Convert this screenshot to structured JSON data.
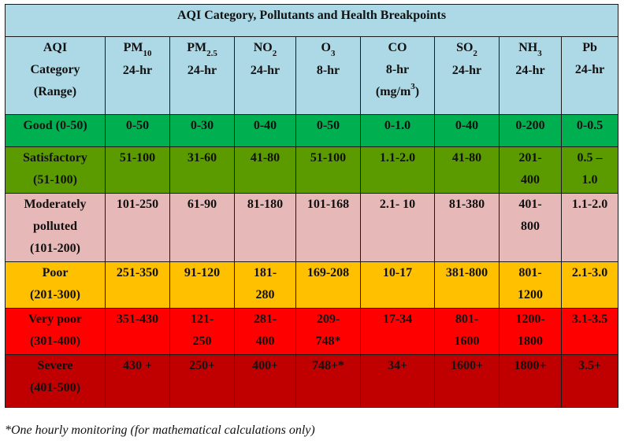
{
  "title": "AQI Category, Pollutants and Health Breakpoints",
  "headers": [
    {
      "lines": [
        "AQI",
        "Category",
        "(Range)"
      ]
    },
    {
      "name": "PM",
      "sub": "10",
      "period": "24-hr"
    },
    {
      "name": "PM",
      "sub": "2.5",
      "period": "24-hr"
    },
    {
      "name": "NO",
      "sub": "2",
      "period": "24-hr"
    },
    {
      "name": "O",
      "sub": "3",
      "period": "8-hr"
    },
    {
      "name": "CO",
      "period": "8-hr",
      "unit": "(mg/m",
      "unit_sup": "3",
      "unit_end": ")"
    },
    {
      "name": "SO",
      "sub": "2",
      "period": "24-hr"
    },
    {
      "name": "NH",
      "sub": "3",
      "period": "24-hr"
    },
    {
      "name": "Pb",
      "period": "24-hr"
    }
  ],
  "rows": [
    {
      "category": [
        "Good (0-50)"
      ],
      "color": "#00b050",
      "values": [
        [
          "0-50"
        ],
        [
          "0-30"
        ],
        [
          "0-40"
        ],
        [
          "0-50"
        ],
        [
          "0-1.0"
        ],
        [
          "0-40"
        ],
        [
          "0-200"
        ],
        [
          "0-0.5"
        ]
      ]
    },
    {
      "category": [
        "Satisfactory",
        "(51-100)"
      ],
      "color": "#5b9b00",
      "values": [
        [
          "51-100"
        ],
        [
          "31-60"
        ],
        [
          "41-80"
        ],
        [
          "51-100"
        ],
        [
          "1.1-2.0"
        ],
        [
          "41-80"
        ],
        [
          "201-",
          "400"
        ],
        [
          "0.5 –",
          "1.0"
        ]
      ]
    },
    {
      "category": [
        "Moderately",
        "polluted",
        "(101-200)"
      ],
      "color": "#e6b8b7",
      "values": [
        [
          "101-250"
        ],
        [
          "61-90"
        ],
        [
          "81-180"
        ],
        [
          "101-168"
        ],
        [
          "2.1- 10"
        ],
        [
          "81-380"
        ],
        [
          "401-",
          "800"
        ],
        [
          "1.1-2.0"
        ]
      ]
    },
    {
      "category": [
        "Poor",
        "(201-300)"
      ],
      "color": "#ffc000",
      "values": [
        [
          "251-350"
        ],
        [
          "91-120"
        ],
        [
          "181-",
          "280"
        ],
        [
          "169-208"
        ],
        [
          "10-17"
        ],
        [
          "381-800"
        ],
        [
          "801-",
          "1200"
        ],
        [
          "2.1-3.0"
        ]
      ]
    },
    {
      "category": [
        "Very poor",
        "(301-400)"
      ],
      "color": "#ff0000",
      "values": [
        [
          "351-430"
        ],
        [
          "121-",
          "250"
        ],
        [
          "281-",
          "400"
        ],
        [
          "209-",
          "748*"
        ],
        [
          "17-34"
        ],
        [
          "801-",
          "1600"
        ],
        [
          "1200-",
          "1800"
        ],
        [
          "3.1-3.5"
        ]
      ]
    },
    {
      "category": [
        "Severe",
        "(401-500)"
      ],
      "color": "#c00000",
      "values": [
        [
          "430 +"
        ],
        [
          "250+"
        ],
        [
          "400+"
        ],
        [
          "748+*"
        ],
        [
          "34+"
        ],
        [
          "1600+"
        ],
        [
          "1800+"
        ],
        [
          "3.5+"
        ]
      ]
    }
  ],
  "footnote": "*One hourly monitoring (for mathematical calculations only)"
}
